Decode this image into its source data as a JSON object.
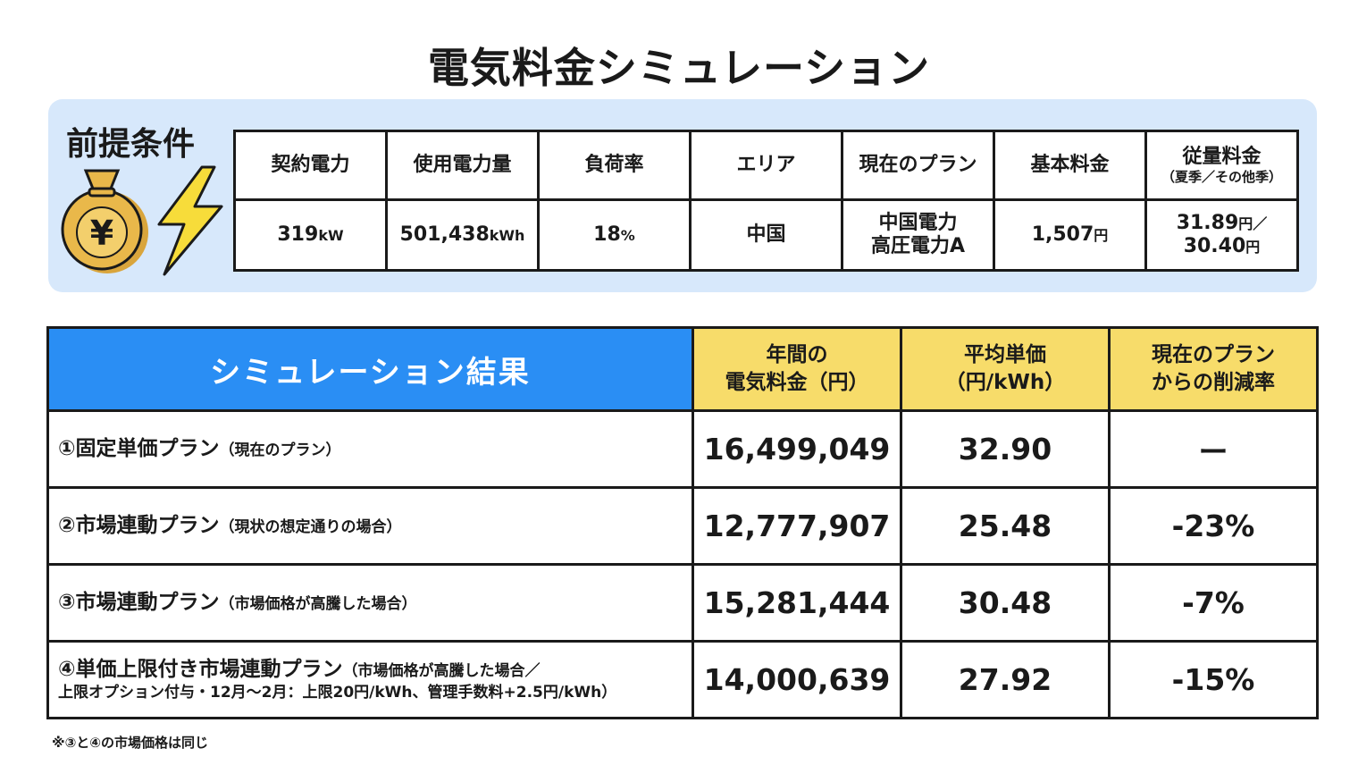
{
  "title": "電気料金シミュレーション",
  "conditions": {
    "label": "前提条件",
    "illustration_icons": [
      "money-bag-yen-icon",
      "lightning-bolt-icon"
    ],
    "currency_symbol": "¥",
    "columns": [
      {
        "header": "契約電力",
        "value": "319",
        "unit": "kW"
      },
      {
        "header": "使用電力量",
        "value": "501,438",
        "unit": "kWh"
      },
      {
        "header": "負荷率",
        "value": "18",
        "unit": "%"
      },
      {
        "header": "エリア",
        "value": "中国",
        "unit": ""
      },
      {
        "header": "現在のプラン",
        "value_lines": [
          "中国電力",
          "高圧電力A"
        ]
      },
      {
        "header": "基本料金",
        "value": "1,507",
        "unit": "円"
      },
      {
        "header": "従量料金",
        "header_sub": "（夏季／その他季）",
        "value_lines": [
          "31.89",
          "30.40"
        ],
        "value_line_units": [
          "円／",
          "円"
        ]
      }
    ]
  },
  "results": {
    "title": "シミュレーション結果",
    "col_headers": [
      [
        "年間の",
        "電気料金（円）"
      ],
      [
        "平均単価",
        "（円/kWh）"
      ],
      [
        "現在のプラン",
        "からの削減率"
      ]
    ],
    "rows": [
      {
        "plan": "①固定単価プラン",
        "note": "（現在のプラン）",
        "annual": "16,499,049",
        "unit_price": "32.90",
        "reduction": "ー"
      },
      {
        "plan": "②市場連動プラン",
        "note": "（現状の想定通りの場合）",
        "annual": "12,777,907",
        "unit_price": "25.48",
        "reduction": "-23%"
      },
      {
        "plan": "③市場連動プラン",
        "note": "（市場価格が高騰した場合）",
        "annual": "15,281,444",
        "unit_price": "30.48",
        "reduction": "-7%"
      },
      {
        "plan": "④単価上限付き市場連動プラン",
        "note": "（市場価格が高騰した場合／",
        "note_line2": "上限オプション付与・12月〜2月：上限20円/kWh、管理手数料+2.5円/kWh）",
        "annual": "14,000,639",
        "unit_price": "27.92",
        "reduction": "-15%"
      }
    ]
  },
  "footnote": "※③と④の市場価格は同じ",
  "colors": {
    "panel_bg": "#d7e8fb",
    "result_header_blue": "#2a8ef4",
    "column_header_yellow": "#f7dc6a",
    "bag_gold": "#e9b84a",
    "bolt_yellow": "#f7dc3a"
  }
}
